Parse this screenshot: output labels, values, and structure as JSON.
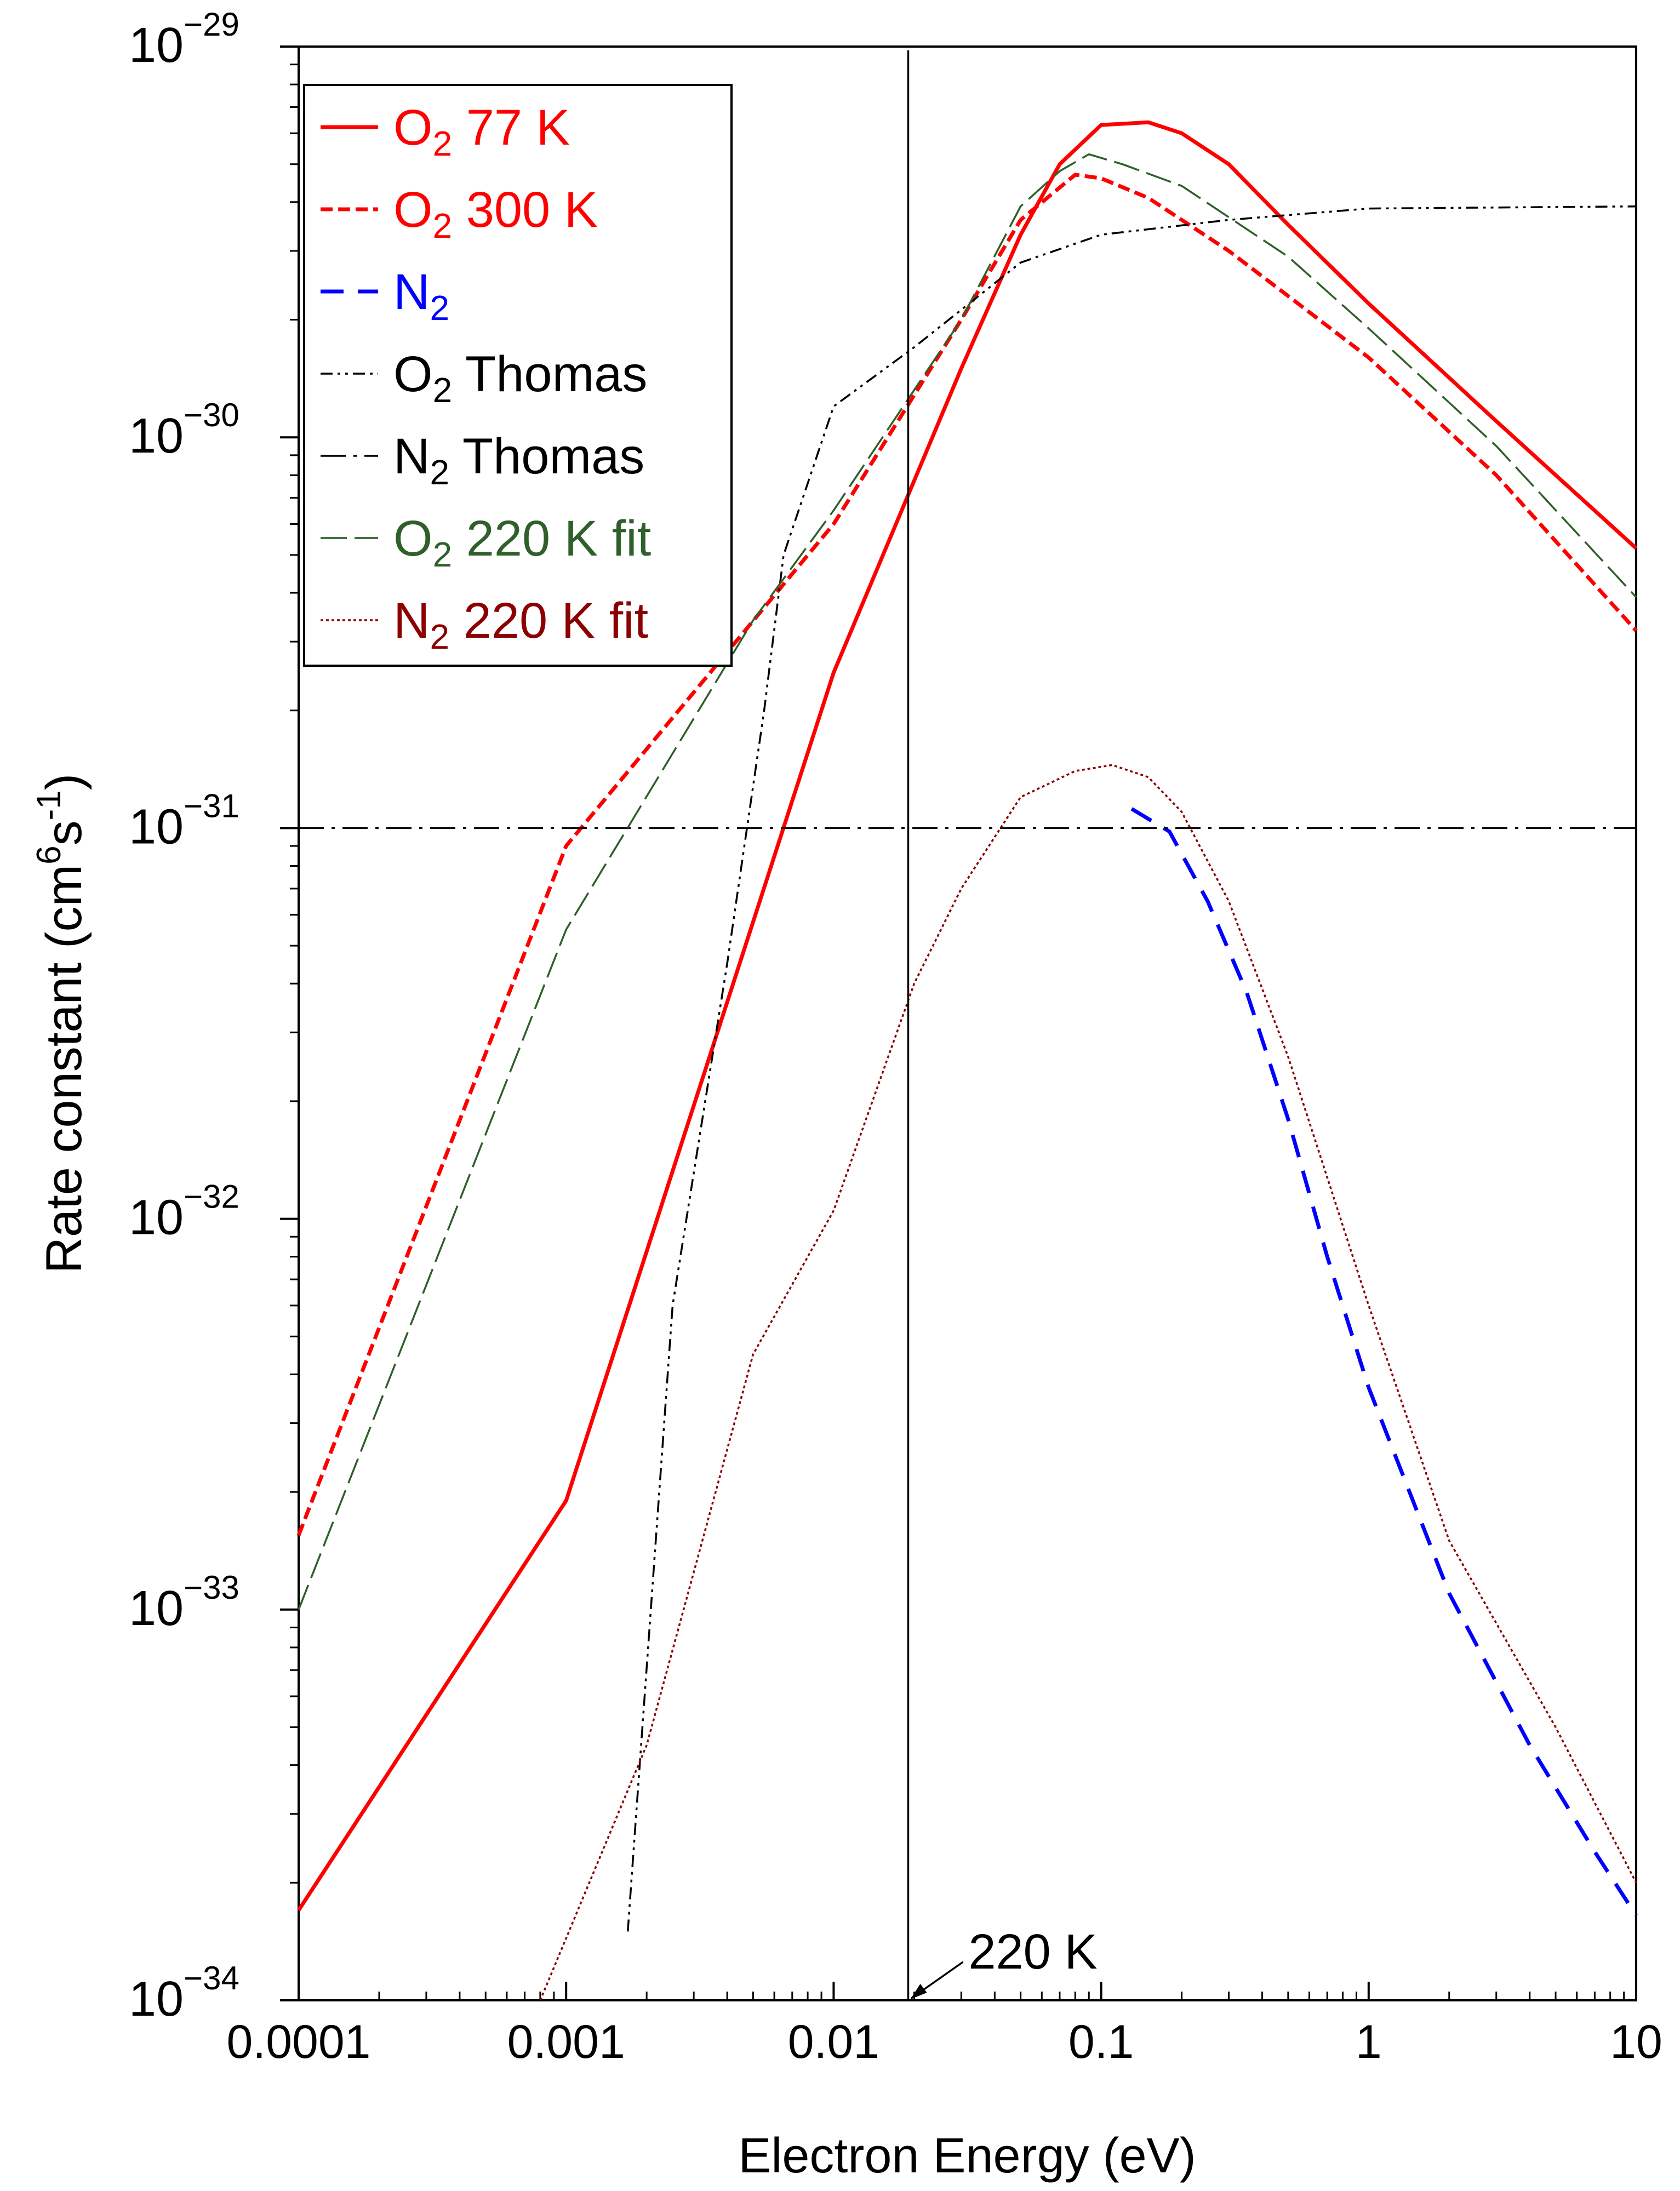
{
  "chart_data": {
    "type": "line",
    "title": "",
    "xlabel": "Electron Energy (eV)",
    "ylabel_main": "Rate constant (cm",
    "ylabel_sup1": "6",
    "ylabel_mid": "s",
    "ylabel_sup2": "-1",
    "ylabel_end": ")",
    "xscale": "log",
    "yscale": "log",
    "xlim": [
      0.0001,
      10
    ],
    "ylim": [
      1e-34,
      1e-29
    ],
    "grid": false,
    "legend_position": "top-left",
    "x_ticks": [
      {
        "value": 0.0001,
        "label": "0.0001"
      },
      {
        "value": 0.001,
        "label": "0.001"
      },
      {
        "value": 0.01,
        "label": "0.01"
      },
      {
        "value": 0.1,
        "label": "0.1"
      },
      {
        "value": 1,
        "label": "1"
      },
      {
        "value": 10,
        "label": "10"
      }
    ],
    "y_ticks": [
      {
        "value": 1e-34,
        "base": "10",
        "exp": "−34"
      },
      {
        "value": 1e-33,
        "base": "10",
        "exp": "−33"
      },
      {
        "value": 1e-32,
        "base": "10",
        "exp": "−32"
      },
      {
        "value": 1e-31,
        "base": "10",
        "exp": "−31"
      },
      {
        "value": 1e-30,
        "base": "10",
        "exp": "−30"
      },
      {
        "value": 1e-29,
        "base": "10",
        "exp": "−29"
      }
    ],
    "series": [
      {
        "name": "O2 77 K",
        "label_main": "O",
        "label_sub": "2",
        "label_rest": " 77 K",
        "color": "#ff0000",
        "dash": "solid",
        "points": [
          [
            0.0001,
            1.7e-34
          ],
          [
            0.001,
            1.9e-33
          ],
          [
            0.01,
            2.5e-31
          ],
          [
            0.03,
            1.5e-30
          ],
          [
            0.05,
            3.3e-30
          ],
          [
            0.07,
            5e-30
          ],
          [
            0.1,
            6.3e-30
          ],
          [
            0.15,
            6.4e-30
          ],
          [
            0.2,
            6e-30
          ],
          [
            0.3,
            5e-30
          ],
          [
            0.5,
            3.5e-30
          ],
          [
            1,
            2.2e-30
          ],
          [
            3,
            1.1e-30
          ],
          [
            10,
            5.2e-31
          ]
        ]
      },
      {
        "name": "O2 300 K",
        "label_main": "O",
        "label_sub": "2",
        "label_rest": " 300 K",
        "color": "#ff0000",
        "dash": "short",
        "points": [
          [
            0.0001,
            1.55e-33
          ],
          [
            0.001,
            9e-32
          ],
          [
            0.01,
            6e-31
          ],
          [
            0.03,
            2e-30
          ],
          [
            0.05,
            3.6e-30
          ],
          [
            0.08,
            4.7e-30
          ],
          [
            0.1,
            4.6e-30
          ],
          [
            0.15,
            4.1e-30
          ],
          [
            0.3,
            3e-30
          ],
          [
            0.5,
            2.3e-30
          ],
          [
            1,
            1.6e-30
          ],
          [
            3,
            8e-31
          ],
          [
            10,
            3.2e-31
          ]
        ]
      },
      {
        "name": "N2",
        "label_main": "N",
        "label_sub": "2",
        "label_rest": "",
        "color": "#0000ff",
        "dash": "long",
        "points": [
          [
            0.13,
            1.12e-31
          ],
          [
            0.18,
            9.8e-32
          ],
          [
            0.25,
            6.5e-32
          ],
          [
            0.35,
            3.8e-32
          ],
          [
            0.5,
            1.8e-32
          ],
          [
            0.7,
            8e-33
          ],
          [
            1,
            3.7e-33
          ],
          [
            2,
            1.1e-33
          ],
          [
            4,
            4.5e-34
          ],
          [
            7,
            2.4e-34
          ],
          [
            10,
            1.65e-34
          ]
        ]
      },
      {
        "name": "O2 Thomas",
        "label_main": "O",
        "label_sub": "2",
        "label_rest": " Thomas",
        "color": "#000000",
        "dash": "dashdotdot",
        "points": [
          [
            0.0017,
            1.5e-34
          ],
          [
            0.0025,
            6e-33
          ],
          [
            0.004,
            4.5e-32
          ],
          [
            0.0055,
            2e-31
          ],
          [
            0.0065,
            5e-31
          ],
          [
            0.01,
            1.2e-30
          ],
          [
            0.02,
            1.7e-30
          ],
          [
            0.05,
            2.8e-30
          ],
          [
            0.1,
            3.3e-30
          ],
          [
            0.3,
            3.6e-30
          ],
          [
            1,
            3.85e-30
          ],
          [
            10,
            3.9e-30
          ]
        ]
      },
      {
        "name": "N2 Thomas",
        "label_main": "N",
        "label_sub": "2",
        "label_rest": " Thomas",
        "color": "#000000",
        "dash": "dashdot",
        "points": [
          [
            0.0001,
            1e-31
          ],
          [
            10,
            1e-31
          ]
        ]
      },
      {
        "name": "O2 220 K fit",
        "label_main": "O",
        "label_sub": "2",
        "label_rest": " 220 K fit",
        "color": "#2f5f2a",
        "dash": "longgap",
        "points": [
          [
            0.0001,
            1e-33
          ],
          [
            0.001,
            5.5e-32
          ],
          [
            0.005,
            3.4e-31
          ],
          [
            0.01,
            6.5e-31
          ],
          [
            0.03,
            2e-30
          ],
          [
            0.05,
            3.9e-30
          ],
          [
            0.07,
            4.8e-30
          ],
          [
            0.09,
            5.3e-30
          ],
          [
            0.12,
            5e-30
          ],
          [
            0.2,
            4.4e-30
          ],
          [
            0.5,
            2.9e-30
          ],
          [
            1,
            1.9e-30
          ],
          [
            3,
            9.5e-31
          ],
          [
            10,
            3.9e-31
          ]
        ]
      },
      {
        "name": "N2 220 K fit",
        "label_main": "N",
        "label_sub": "2",
        "label_rest": " 220 K fit",
        "color": "#8b0000",
        "dash": "dotted",
        "points": [
          [
            0.0008,
            1e-34
          ],
          [
            0.002,
            4.5e-34
          ],
          [
            0.005,
            4.5e-33
          ],
          [
            0.01,
            1.05e-32
          ],
          [
            0.02,
            4e-32
          ],
          [
            0.03,
            7e-32
          ],
          [
            0.05,
            1.2e-31
          ],
          [
            0.08,
            1.4e-31
          ],
          [
            0.11,
            1.45e-31
          ],
          [
            0.15,
            1.35e-31
          ],
          [
            0.2,
            1.1e-31
          ],
          [
            0.3,
            6.5e-32
          ],
          [
            0.5,
            2.6e-32
          ],
          [
            1,
            6e-33
          ],
          [
            2,
            1.5e-33
          ],
          [
            5,
            5e-34
          ],
          [
            10,
            2e-34
          ]
        ]
      }
    ],
    "vertical_line": {
      "x": 0.019
    },
    "annotation": {
      "text": "220 K",
      "x": 0.019,
      "y": 1e-34
    }
  }
}
